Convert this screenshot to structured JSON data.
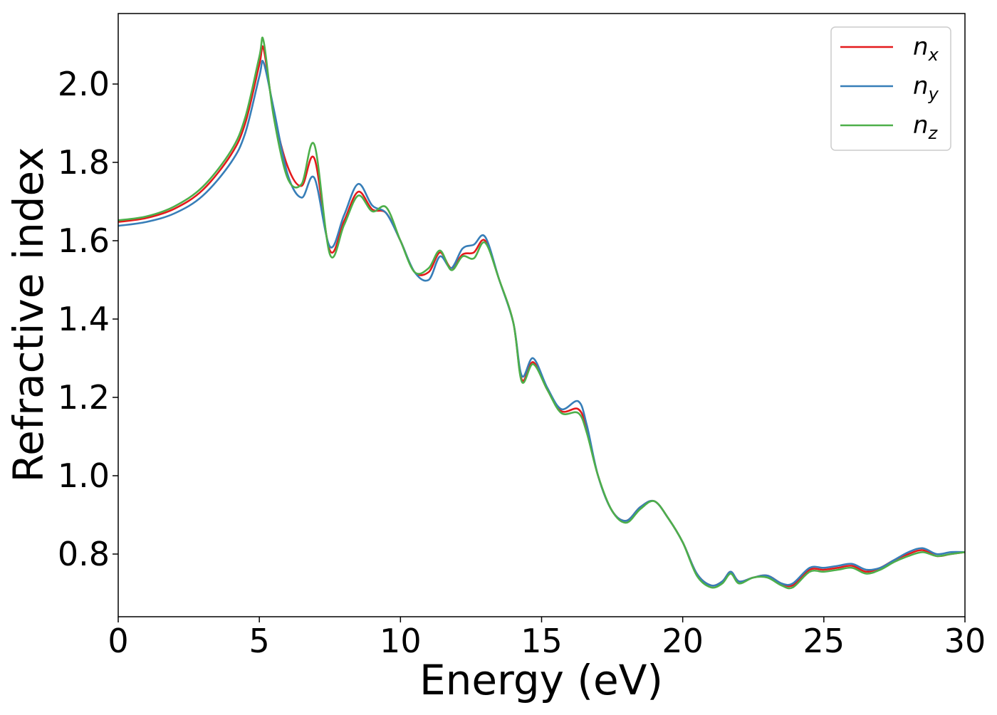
{
  "chart_data": {
    "type": "line",
    "title": "",
    "xlabel": "Energy (eV)",
    "ylabel": "Refractive index",
    "xlim": [
      0,
      30
    ],
    "ylim": [
      0.64,
      2.18
    ],
    "xticks": [
      0,
      5,
      10,
      15,
      20,
      25,
      30
    ],
    "xtick_labels": [
      "0",
      "5",
      "10",
      "15",
      "20",
      "25",
      "30"
    ],
    "yticks": [
      0.8,
      1.0,
      1.2,
      1.4,
      1.6,
      1.8,
      2.0
    ],
    "ytick_labels": [
      "0.8",
      "1.0",
      "1.2",
      "1.4",
      "1.6",
      "1.8",
      "2.0"
    ],
    "grid": false,
    "legend_position": "top-right",
    "series": [
      {
        "name": "n",
        "subscript": "x",
        "color": "#e41a1c",
        "x": [
          0,
          1,
          2,
          3,
          4,
          4.5,
          5.0,
          5.15,
          5.5,
          6.0,
          6.5,
          6.95,
          7.5,
          8.0,
          8.5,
          9.0,
          9.5,
          10.0,
          10.5,
          11.0,
          11.4,
          11.8,
          12.2,
          12.6,
          13.0,
          13.5,
          14.0,
          14.3,
          14.7,
          15.2,
          15.7,
          16.3,
          16.6,
          17.0,
          17.5,
          18.0,
          18.5,
          19.0,
          19.5,
          20.0,
          20.5,
          21.0,
          21.4,
          21.7,
          22.0,
          22.5,
          23.0,
          23.5,
          23.9,
          24.5,
          25.0,
          25.5,
          26.0,
          26.5,
          27.0,
          27.5,
          28.0,
          28.5,
          29.0,
          29.5,
          30.0
        ],
        "y": [
          1.648,
          1.658,
          1.682,
          1.73,
          1.82,
          1.9,
          2.05,
          2.09,
          1.93,
          1.79,
          1.74,
          1.81,
          1.575,
          1.65,
          1.725,
          1.68,
          1.67,
          1.6,
          1.52,
          1.52,
          1.57,
          1.53,
          1.565,
          1.57,
          1.6,
          1.5,
          1.39,
          1.245,
          1.29,
          1.22,
          1.165,
          1.17,
          1.12,
          1.0,
          0.91,
          0.885,
          0.92,
          0.935,
          0.89,
          0.83,
          0.75,
          0.72,
          0.73,
          0.755,
          0.73,
          0.74,
          0.745,
          0.725,
          0.72,
          0.76,
          0.76,
          0.765,
          0.77,
          0.755,
          0.765,
          0.785,
          0.8,
          0.81,
          0.795,
          0.8,
          0.805
        ]
      },
      {
        "name": "n",
        "subscript": "y",
        "color": "#377eb8",
        "x": [
          0,
          1,
          2,
          3,
          4,
          4.5,
          5.0,
          5.15,
          5.5,
          6.0,
          6.5,
          6.95,
          7.5,
          8.0,
          8.5,
          9.0,
          9.5,
          10.0,
          10.5,
          11.0,
          11.4,
          11.8,
          12.2,
          12.6,
          13.0,
          13.5,
          14.0,
          14.3,
          14.7,
          15.2,
          15.7,
          16.3,
          16.6,
          17.0,
          17.5,
          18.0,
          18.5,
          19.0,
          19.5,
          20.0,
          20.5,
          21.0,
          21.4,
          21.7,
          22.0,
          22.5,
          23.0,
          23.5,
          23.9,
          24.5,
          25.0,
          25.5,
          26.0,
          26.5,
          27.0,
          27.5,
          28.0,
          28.5,
          29.0,
          29.5,
          30.0
        ],
        "y": [
          1.638,
          1.648,
          1.67,
          1.715,
          1.8,
          1.875,
          2.02,
          2.055,
          1.94,
          1.77,
          1.71,
          1.76,
          1.585,
          1.665,
          1.745,
          1.69,
          1.67,
          1.6,
          1.52,
          1.5,
          1.56,
          1.53,
          1.58,
          1.59,
          1.61,
          1.5,
          1.39,
          1.255,
          1.3,
          1.225,
          1.17,
          1.19,
          1.13,
          1.0,
          0.91,
          0.885,
          0.92,
          0.935,
          0.89,
          0.83,
          0.75,
          0.72,
          0.73,
          0.755,
          0.73,
          0.74,
          0.745,
          0.725,
          0.725,
          0.765,
          0.765,
          0.77,
          0.775,
          0.76,
          0.765,
          0.785,
          0.805,
          0.815,
          0.8,
          0.805,
          0.805
        ]
      },
      {
        "name": "n",
        "subscript": "z",
        "color": "#4daf4a",
        "x": [
          0,
          1,
          2,
          3,
          4,
          4.5,
          5.0,
          5.15,
          5.5,
          6.0,
          6.5,
          6.95,
          7.5,
          8.0,
          8.5,
          9.0,
          9.5,
          10.0,
          10.5,
          11.0,
          11.4,
          11.8,
          12.2,
          12.6,
          13.0,
          13.5,
          14.0,
          14.3,
          14.7,
          15.2,
          15.7,
          16.3,
          16.6,
          17.0,
          17.5,
          18.0,
          18.5,
          19.0,
          19.5,
          20.0,
          20.5,
          21.0,
          21.4,
          21.7,
          22.0,
          22.5,
          23.0,
          23.5,
          23.9,
          24.5,
          25.0,
          25.5,
          26.0,
          26.5,
          27.0,
          27.5,
          28.0,
          28.5,
          29.0,
          29.5,
          30.0
        ],
        "y": [
          1.652,
          1.662,
          1.688,
          1.738,
          1.83,
          1.915,
          2.07,
          2.11,
          1.92,
          1.76,
          1.745,
          1.845,
          1.565,
          1.64,
          1.715,
          1.675,
          1.685,
          1.6,
          1.52,
          1.53,
          1.575,
          1.525,
          1.56,
          1.555,
          1.595,
          1.5,
          1.39,
          1.24,
          1.285,
          1.22,
          1.16,
          1.16,
          1.11,
          1.0,
          0.91,
          0.88,
          0.915,
          0.935,
          0.89,
          0.83,
          0.745,
          0.715,
          0.725,
          0.75,
          0.725,
          0.74,
          0.74,
          0.72,
          0.715,
          0.755,
          0.755,
          0.76,
          0.765,
          0.75,
          0.76,
          0.78,
          0.795,
          0.805,
          0.795,
          0.8,
          0.805
        ]
      }
    ]
  }
}
